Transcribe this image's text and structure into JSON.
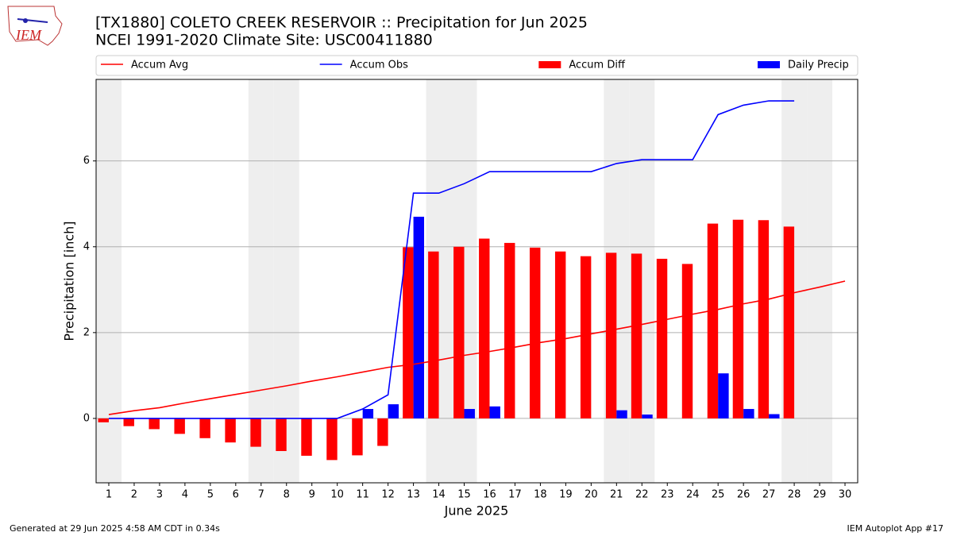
{
  "chart_data": {
    "type": "combo",
    "logo_text": "IEM",
    "title": "[TX1880] COLETO CREEK RESERVOIR :: Precipitation for Jun 2025",
    "subtitle": "NCEI 1991-2020 Climate Site: USC00411880",
    "x_label": "June 2025",
    "y_label": "Precipitation [inch]",
    "footer_left": "Generated at 29 Jun 2025 4:58 AM CDT in 0.34s",
    "footer_right": "IEM Autoplot App #17",
    "x": [
      1,
      2,
      3,
      4,
      5,
      6,
      7,
      8,
      9,
      10,
      11,
      12,
      13,
      14,
      15,
      16,
      17,
      18,
      19,
      20,
      21,
      22,
      23,
      24,
      25,
      26,
      27,
      28,
      29,
      30
    ],
    "xlim": [
      0.5,
      30.5
    ],
    "xticks": [
      1,
      2,
      3,
      4,
      5,
      6,
      7,
      8,
      9,
      10,
      11,
      12,
      13,
      14,
      15,
      16,
      17,
      18,
      19,
      20,
      21,
      22,
      23,
      24,
      25,
      26,
      27,
      28,
      29,
      30
    ],
    "ylim": [
      -1.5,
      7.9
    ],
    "yticks": [
      0,
      2,
      4,
      6
    ],
    "grid": true,
    "shaded_days": [
      1,
      7,
      8,
      14,
      15,
      21,
      22,
      28,
      29
    ],
    "series": [
      {
        "name": "Accum Avg",
        "type": "line",
        "color": "#ff0000",
        "values": [
          0.09,
          0.18,
          0.25,
          0.36,
          0.46,
          0.56,
          0.66,
          0.76,
          0.87,
          0.97,
          1.08,
          1.19,
          1.26,
          1.36,
          1.47,
          1.56,
          1.66,
          1.77,
          1.86,
          1.97,
          2.08,
          2.19,
          2.31,
          2.43,
          2.54,
          2.67,
          2.78,
          2.93,
          3.06,
          3.2
        ]
      },
      {
        "name": "Accum Obs",
        "type": "line",
        "color": "#0000ff",
        "values": [
          0,
          0,
          0,
          0,
          0,
          0,
          0,
          0,
          0,
          0,
          0.22,
          0.55,
          5.25,
          5.25,
          5.47,
          5.75,
          5.75,
          5.75,
          5.75,
          5.75,
          5.94,
          6.03,
          6.03,
          6.03,
          7.08,
          7.3,
          7.4,
          7.4,
          null,
          null
        ]
      },
      {
        "name": "Accum Diff",
        "type": "bar",
        "color": "#ff0000",
        "values": [
          -0.09,
          -0.18,
          -0.25,
          -0.36,
          -0.46,
          -0.56,
          -0.66,
          -0.76,
          -0.87,
          -0.97,
          -0.86,
          -0.64,
          3.99,
          3.89,
          4.0,
          4.19,
          4.09,
          3.98,
          3.89,
          3.78,
          3.86,
          3.84,
          3.72,
          3.6,
          4.54,
          4.63,
          4.62,
          4.47,
          null,
          null
        ]
      },
      {
        "name": "Daily Precip",
        "type": "bar",
        "color": "#0000ff",
        "values": [
          0,
          0,
          0,
          0,
          0,
          0,
          0,
          0,
          0,
          0,
          0.22,
          0.33,
          4.7,
          0,
          0.22,
          0.28,
          0,
          0,
          0,
          0,
          0.19,
          0.09,
          0,
          0,
          1.05,
          0.22,
          0.1,
          0,
          null,
          null
        ]
      }
    ]
  }
}
